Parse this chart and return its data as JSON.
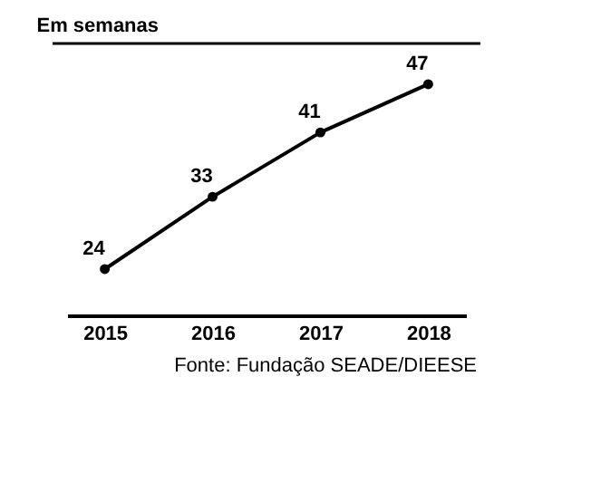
{
  "chart_data": {
    "type": "line",
    "title": "Em semanas",
    "categories": [
      "2015",
      "2016",
      "2017",
      "2018"
    ],
    "series": [
      {
        "color": "#000000",
        "values": [
          24,
          33,
          41,
          47
        ]
      }
    ],
    "marker": "circle",
    "line_style": "solid",
    "data_labels": true,
    "grid": false,
    "annotations": [
      "Fonte: Fundação SEADE/DIEESE"
    ]
  }
}
